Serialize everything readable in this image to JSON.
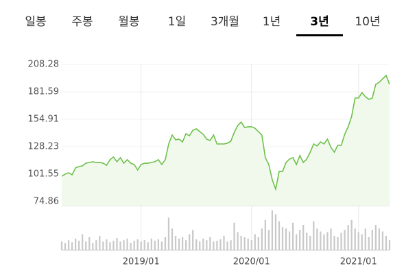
{
  "tabs": [
    "일봉",
    "주봉",
    "월봉",
    "1일",
    "3개월",
    "1년",
    "3년",
    "10년"
  ],
  "selected_tab": 6,
  "chart_data": {
    "type": "line",
    "ylim": [
      74.86,
      208.28
    ],
    "yticks": [
      74.86,
      101.55,
      128.23,
      154.91,
      181.59,
      208.28
    ],
    "grid": true,
    "color": "#6cc04a",
    "fill": "#f1f9ec",
    "volume_color": "#c9c9c9",
    "categories": [
      null,
      null,
      null,
      null,
      null,
      null,
      null,
      null,
      null,
      null,
      null,
      null,
      null,
      null,
      null,
      null,
      null,
      null,
      null,
      null,
      null,
      null,
      null,
      "2019/01",
      null,
      null,
      null,
      null,
      null,
      null,
      null,
      null,
      null,
      null,
      null,
      null,
      null,
      null,
      null,
      null,
      null,
      null,
      null,
      null,
      null,
      null,
      null,
      null,
      null,
      null,
      null,
      null,
      null,
      null,
      null,
      "2020/01",
      null,
      null,
      null,
      null,
      null,
      null,
      null,
      null,
      null,
      null,
      null,
      null,
      null,
      null,
      null,
      null,
      null,
      null,
      null,
      null,
      null,
      null,
      null,
      null,
      null,
      null,
      null,
      null,
      null,
      null,
      "2021/01",
      null,
      null,
      null,
      null,
      null,
      null,
      null,
      null,
      null
    ],
    "values": [
      99.5,
      101.5,
      102.9,
      100.9,
      107.6,
      108.9,
      109.6,
      112.2,
      112.9,
      113.6,
      112.9,
      112.9,
      112.2,
      110.2,
      115.6,
      118.2,
      113.6,
      117.6,
      112.2,
      115.6,
      112.2,
      110.9,
      105.6,
      110.9,
      112.2,
      112.2,
      112.9,
      113.6,
      115.6,
      110.9,
      115.6,
      130.9,
      139.6,
      134.9,
      135.6,
      132.9,
      140.9,
      138.9,
      144.2,
      145.6,
      142.9,
      140.2,
      135.6,
      134.2,
      139.6,
      130.9,
      130.9,
      130.9,
      131.6,
      133.6,
      142.2,
      148.9,
      152.2,
      146.9,
      147.6,
      147.6,
      146.2,
      142.9,
      139.6,
      117.6,
      110.9,
      96.2,
      86.9,
      104.2,
      104.2,
      112.9,
      116.2,
      117.6,
      110.9,
      119.6,
      112.9,
      116.2,
      122.9,
      130.9,
      128.9,
      132.9,
      130.9,
      135.6,
      127.6,
      122.9,
      129.6,
      129.6,
      140.2,
      147.6,
      157.6,
      175.6,
      175.6,
      180.9,
      176.9,
      174.3,
      175.6,
      188.9,
      190.9,
      194.3,
      197.6,
      188.9
    ],
    "volume": [
      12,
      10,
      14,
      11,
      16,
      13,
      22,
      12,
      18,
      10,
      14,
      20,
      12,
      15,
      11,
      13,
      17,
      12,
      14,
      16,
      10,
      13,
      15,
      12,
      14,
      11,
      16,
      13,
      15,
      12,
      18,
      45,
      30,
      20,
      16,
      18,
      14,
      22,
      28,
      15,
      12,
      16,
      14,
      18,
      12,
      13,
      15,
      20,
      12,
      14,
      38,
      25,
      20,
      18,
      16,
      14,
      22,
      18,
      30,
      42,
      28,
      55,
      50,
      40,
      32,
      30,
      26,
      38,
      22,
      28,
      35,
      24,
      20,
      40,
      30,
      26,
      22,
      25,
      30,
      20,
      18,
      24,
      28,
      35,
      42,
      30,
      25,
      22,
      30,
      18,
      28,
      35,
      30,
      26,
      20,
      14
    ]
  }
}
